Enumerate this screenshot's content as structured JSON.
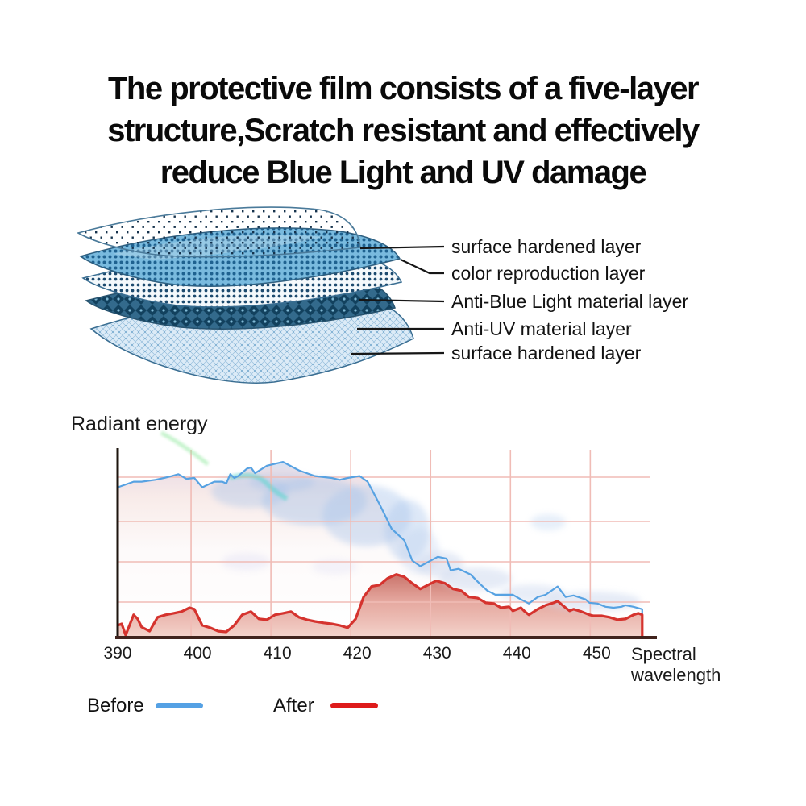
{
  "title": {
    "line1": "The protective film consists of a five-layer",
    "line2": "structure,Scratch resistant and effectively",
    "line3": "reduce Blue Light and UV damage"
  },
  "diagram": {
    "labels": [
      "surface hardened layer",
      "color reproduction layer",
      "Anti-Blue Light material layer",
      "Anti-UV material layer",
      "surface hardened layer"
    ]
  },
  "chart_data": {
    "type": "area",
    "title": "",
    "ylabel": "Radiant energy",
    "xlabel": "Spectral wavelength",
    "x_ticks": [
      390,
      400,
      410,
      420,
      430,
      440,
      450
    ],
    "xlim": [
      390,
      456
    ],
    "ylim": [
      0,
      100
    ],
    "grid": true,
    "grid_color": "#f0bcb6",
    "legend_position": "bottom",
    "series": [
      {
        "name": "Before",
        "color": "#57a2e2",
        "points": [
          [
            390,
            80
          ],
          [
            391,
            81.5
          ],
          [
            392,
            83
          ],
          [
            393,
            83
          ],
          [
            394.7,
            84
          ],
          [
            395.8,
            85
          ],
          [
            396.8,
            86
          ],
          [
            397.6,
            87
          ],
          [
            398.6,
            84.5
          ],
          [
            399.6,
            85
          ],
          [
            400.6,
            80
          ],
          [
            401.1,
            81
          ],
          [
            402.1,
            83
          ],
          [
            403.1,
            83
          ],
          [
            403.6,
            82
          ],
          [
            404.1,
            87
          ],
          [
            404.6,
            85
          ],
          [
            405.1,
            86
          ],
          [
            406.2,
            90
          ],
          [
            406.7,
            90.5
          ],
          [
            407.2,
            87.5
          ],
          [
            408.7,
            91.5
          ],
          [
            410.7,
            93.5
          ],
          [
            412.7,
            89
          ],
          [
            413.7,
            87.5
          ],
          [
            414.7,
            86
          ],
          [
            416.8,
            85
          ],
          [
            417.8,
            84
          ],
          [
            418.8,
            85
          ],
          [
            420.3,
            86
          ],
          [
            421.3,
            83
          ],
          [
            422.8,
            71
          ],
          [
            424.3,
            58
          ],
          [
            425.9,
            51.7
          ],
          [
            426.9,
            41
          ],
          [
            427.9,
            38
          ],
          [
            430.1,
            43
          ],
          [
            431.2,
            42
          ],
          [
            431.7,
            35.8
          ],
          [
            432.7,
            36.6
          ],
          [
            434.2,
            33.6
          ],
          [
            435.3,
            28.9
          ],
          [
            436.3,
            25
          ],
          [
            437.3,
            22.8
          ],
          [
            439.5,
            22.8
          ],
          [
            440.5,
            20.3
          ],
          [
            441.5,
            18.1
          ],
          [
            442.6,
            21.6
          ],
          [
            443.6,
            22.8
          ],
          [
            445.1,
            27.2
          ],
          [
            446.1,
            21.6
          ],
          [
            447.1,
            22.4
          ],
          [
            448.6,
            20.3
          ],
          [
            449.1,
            18.5
          ],
          [
            450.1,
            18.1
          ],
          [
            451.1,
            16.4
          ],
          [
            452.1,
            15.9
          ],
          [
            453.1,
            16.4
          ],
          [
            453.6,
            17.2
          ],
          [
            454.6,
            16.4
          ],
          [
            455.7,
            15.1
          ]
        ]
      },
      {
        "name": "After",
        "color": "#d5332e",
        "points": [
          [
            390,
            6.5
          ],
          [
            390.5,
            7.3
          ],
          [
            391,
            1.3
          ],
          [
            392,
            12.1
          ],
          [
            392.5,
            9.9
          ],
          [
            393,
            5.6
          ],
          [
            394,
            3.4
          ],
          [
            395,
            10.8
          ],
          [
            396,
            12.1
          ],
          [
            397,
            12.9
          ],
          [
            398,
            13.8
          ],
          [
            399,
            15.9
          ],
          [
            399.6,
            15.1
          ],
          [
            400.6,
            6.5
          ],
          [
            401.6,
            5.2
          ],
          [
            402.6,
            3.4
          ],
          [
            403.6,
            3
          ],
          [
            404.6,
            6.5
          ],
          [
            405.6,
            12.1
          ],
          [
            406.7,
            13.8
          ],
          [
            407.7,
            9.9
          ],
          [
            408.7,
            9.5
          ],
          [
            409.7,
            12.1
          ],
          [
            410.7,
            12.9
          ],
          [
            411.7,
            13.8
          ],
          [
            412.7,
            10.8
          ],
          [
            413.7,
            9.5
          ],
          [
            414.7,
            8.6
          ],
          [
            415.8,
            7.8
          ],
          [
            416.8,
            7.3
          ],
          [
            417.8,
            6.5
          ],
          [
            418.8,
            5.2
          ],
          [
            419.8,
            9.9
          ],
          [
            420.8,
            21.6
          ],
          [
            421.8,
            27.2
          ],
          [
            422.8,
            28
          ],
          [
            423.8,
            31.5
          ],
          [
            424.9,
            33.6
          ],
          [
            425.9,
            32.3
          ],
          [
            426.9,
            28.9
          ],
          [
            427.9,
            25.9
          ],
          [
            429.9,
            30.2
          ],
          [
            431,
            28.9
          ],
          [
            432,
            25.9
          ],
          [
            433,
            25
          ],
          [
            434,
            21.6
          ],
          [
            435.1,
            21
          ],
          [
            436.1,
            18.5
          ],
          [
            437.1,
            18.1
          ],
          [
            438,
            15.9
          ],
          [
            439,
            16.4
          ],
          [
            439.5,
            14.2
          ],
          [
            440.5,
            15.9
          ],
          [
            441,
            13.8
          ],
          [
            441.5,
            12.1
          ],
          [
            442.6,
            15.1
          ],
          [
            443.6,
            17.2
          ],
          [
            444.6,
            18.5
          ],
          [
            445.1,
            19.4
          ],
          [
            446.1,
            15.9
          ],
          [
            446.6,
            14.2
          ],
          [
            447.1,
            15.1
          ],
          [
            448.1,
            13.8
          ],
          [
            449.1,
            12.1
          ],
          [
            449.6,
            11.6
          ],
          [
            450.6,
            11.6
          ],
          [
            451.6,
            10.8
          ],
          [
            452.6,
            9.5
          ],
          [
            453.6,
            9.9
          ],
          [
            454.6,
            12.1
          ],
          [
            455.2,
            12.9
          ],
          [
            455.7,
            12.1
          ]
        ]
      }
    ]
  },
  "legend": {
    "items": [
      {
        "label": "Before",
        "color": "#55a1e4"
      },
      {
        "label": "After",
        "color": "#de1b1b"
      }
    ]
  }
}
